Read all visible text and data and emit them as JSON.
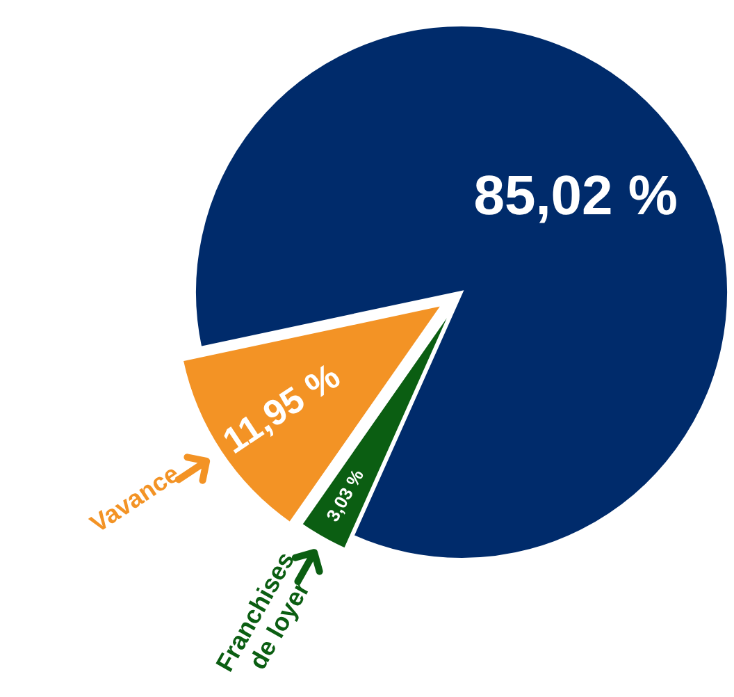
{
  "chart_data": {
    "type": "pie",
    "categories": [
      null,
      "Franchises de loyer",
      "Vavance"
    ],
    "values": [
      85.02,
      3.03,
      11.95
    ],
    "value_labels": [
      "85,02 %",
      "3,03 %",
      "11,95 %"
    ],
    "colors": [
      "#002b6b",
      "#0b5e12",
      "#f39325"
    ]
  }
}
